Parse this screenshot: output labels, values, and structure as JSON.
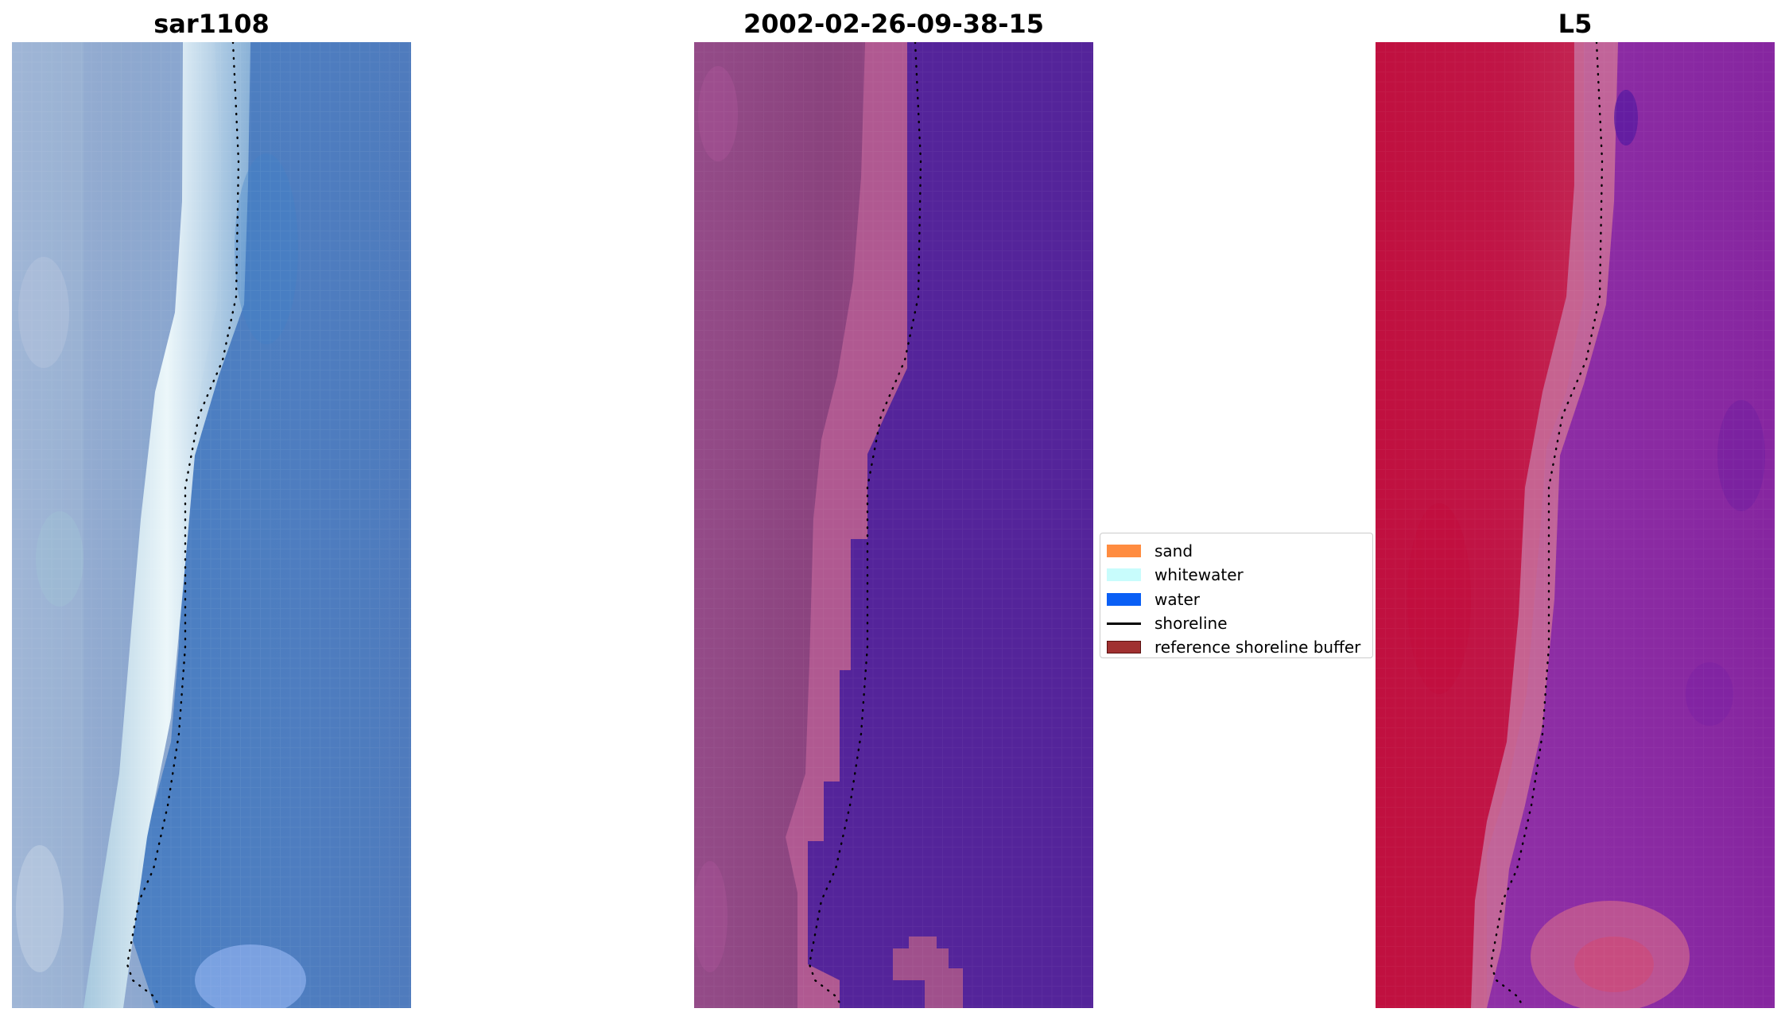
{
  "panels": [
    {
      "title": "sar1108"
    },
    {
      "title": "2002-02-26-09-38-15"
    },
    {
      "title": "L5"
    }
  ],
  "legend": {
    "items": [
      {
        "label": "sand",
        "kind": "patch",
        "color": "#ff8c40"
      },
      {
        "label": "whitewater",
        "kind": "patch",
        "color": "#c8fcfc"
      },
      {
        "label": "water",
        "kind": "patch",
        "color": "#0a5ff5"
      },
      {
        "label": "shoreline",
        "kind": "line",
        "color": "#000000"
      },
      {
        "label": "reference shoreline buffer",
        "kind": "patch",
        "color": "#a03030"
      }
    ]
  },
  "colors": {
    "ocean_blue": "#4f7fc1",
    "whitewater": "#e8f6fa",
    "beach_bluegrey": "#8ea8cc",
    "class_water": "#54249a",
    "class_land": "#8c447e",
    "class_whitewater": "#b85c93",
    "index_land": "#c01240",
    "index_water": "#8a26a0",
    "index_transition": "#c66a98"
  }
}
